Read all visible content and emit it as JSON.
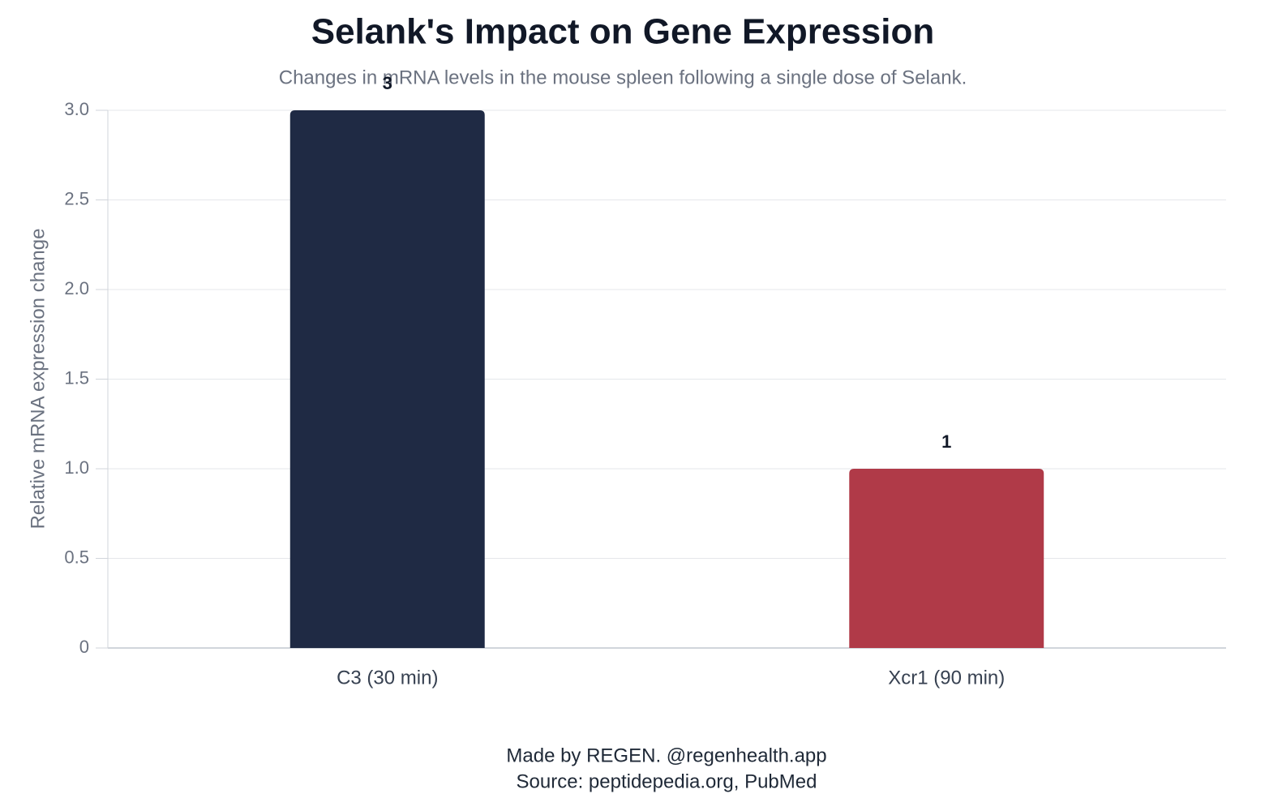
{
  "chart_data": {
    "type": "bar",
    "title": "Selank's Impact on Gene Expression",
    "subtitle": "Changes in mRNA levels in the mouse spleen following a single dose of Selank.",
    "y_label": "Relative mRNA expression change",
    "categories": [
      "C3 (30 min)",
      "Xcr1 (90 min)"
    ],
    "values": [
      3,
      1
    ],
    "colors": [
      "#1f2a44",
      "#b03a48"
    ],
    "ylim": [
      0,
      3
    ],
    "yticks": [
      0,
      0.5,
      {
        "value": 1,
        "label": "1.0"
      },
      1.5,
      {
        "value": 2,
        "label": "2.0"
      },
      2.5,
      {
        "value": 3,
        "label": "3.0"
      }
    ],
    "grid": true,
    "footer": [
      "Made by REGEN. @regenhealth.app",
      "Source: peptidepedia.org, PubMed"
    ]
  }
}
